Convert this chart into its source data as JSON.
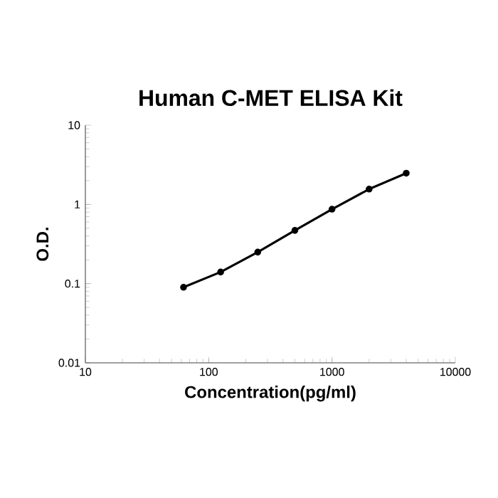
{
  "chart_data": {
    "type": "line",
    "title": "Human C-MET ELISA Kit",
    "xlabel": "Concentration(pg/ml)",
    "ylabel": "O.D.",
    "log": "xy",
    "x": [
      62.5,
      125,
      250,
      500,
      1000,
      2000,
      4000
    ],
    "series": [
      {
        "color": "#000000",
        "values": [
          0.09,
          0.14,
          0.25,
          0.47,
          0.87,
          1.56,
          2.48
        ]
      }
    ],
    "xlim": [
      10,
      10000
    ],
    "ylim": [
      0.01,
      10
    ],
    "xticks": [
      10,
      100,
      1000,
      10000
    ],
    "yticks": [
      0.01,
      0.1,
      1,
      10
    ],
    "marker": "circle",
    "line_style": "solid",
    "grid": false
  }
}
